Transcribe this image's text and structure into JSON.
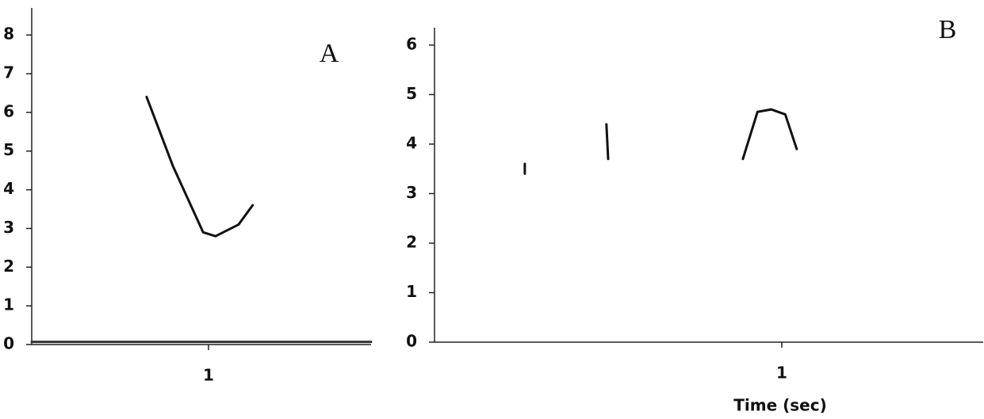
{
  "chart_data": [
    {
      "type": "line",
      "annotation": "A",
      "xlim": [
        0,
        1.92
      ],
      "xticks": [
        1
      ],
      "ylim": [
        0,
        8.7
      ],
      "yticks": [
        0,
        1,
        2,
        3,
        4,
        5,
        6,
        7,
        8
      ],
      "series": [
        {
          "color": "#111111",
          "x": [
            0.65,
            0.8,
            0.97,
            1.04,
            1.17,
            1.25
          ],
          "values": [
            6.4,
            4.6,
            2.9,
            2.8,
            3.1,
            3.6
          ]
        },
        {
          "color": "#333333",
          "x": [
            0,
            1.92
          ],
          "values": [
            0.07,
            0.07
          ]
        }
      ]
    },
    {
      "type": "line",
      "annotation": "B",
      "xlabel": "Time (sec)",
      "xlim": [
        0,
        1.58
      ],
      "xticks": [
        1
      ],
      "ylim": [
        0,
        6.35
      ],
      "yticks": [
        0,
        1,
        2,
        3,
        4,
        5,
        6
      ],
      "series": [
        {
          "color": "#111111",
          "x": [
            0.26,
            0.26,
            null,
            0.495,
            0.5,
            null,
            0.888,
            0.93,
            0.97,
            1.01,
            1.043
          ],
          "values": [
            3.6,
            3.4,
            null,
            4.4,
            3.7,
            null,
            3.7,
            4.65,
            4.7,
            4.6,
            3.9
          ]
        }
      ]
    }
  ]
}
